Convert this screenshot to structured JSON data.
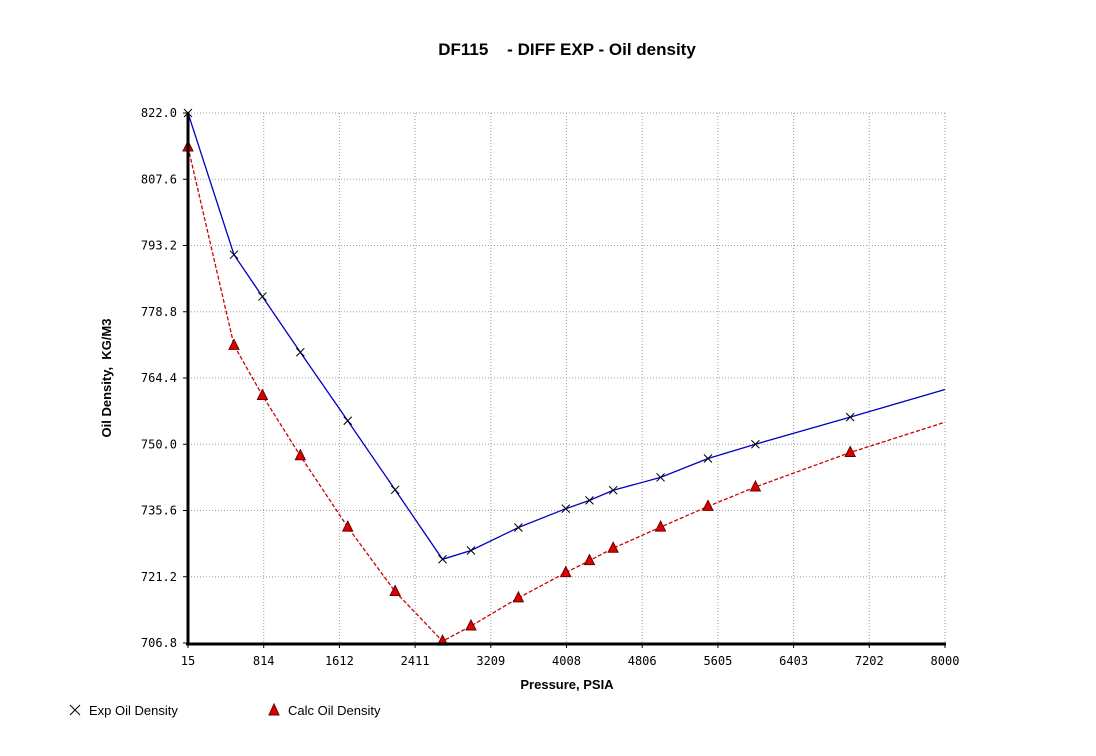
{
  "chart_data": {
    "type": "line",
    "title": "DF115    - DIFF EXP - Oil density",
    "xlabel": "Pressure, PSIA",
    "ylabel": "Oil Density,  KG/M3",
    "xlim": [
      15,
      8000
    ],
    "ylim": [
      706.8,
      822.0
    ],
    "xticks": [
      "15",
      "814",
      "1612",
      "2411",
      "3209",
      "4008",
      "4806",
      "5605",
      "6403",
      "7202",
      "8000"
    ],
    "yticks": [
      "822.0",
      "807.6",
      "793.2",
      "778.8",
      "764.4",
      "750.0",
      "735.6",
      "721.2",
      "706.8"
    ],
    "grid": true,
    "legend_position": "bottom-left",
    "series": [
      {
        "name": "Exp Oil Density",
        "color": "#0000c0",
        "marker": "x",
        "line": "solid",
        "x": [
          15,
          500,
          800,
          1200,
          1700,
          2200,
          2700,
          3000,
          3500,
          4000,
          4250,
          4500,
          5000,
          5500,
          6000,
          7000,
          8000
        ],
        "y": [
          822.0,
          791.2,
          782.1,
          770.0,
          755.1,
          740.1,
          725.0,
          726.9,
          731.9,
          736.0,
          737.8,
          740.0,
          742.8,
          746.9,
          750.0,
          755.9,
          761.9
        ]
      },
      {
        "name": "Calc Oil Density",
        "color": "#cc0000",
        "marker": "triangle",
        "line": "dashed",
        "x": [
          15,
          500,
          800,
          1200,
          1700,
          2200,
          2700,
          3000,
          3500,
          4000,
          4250,
          4500,
          5000,
          5500,
          6000,
          7000,
          8000
        ],
        "y": [
          814.6,
          771.5,
          760.6,
          747.5,
          732.0,
          718.0,
          707.2,
          710.5,
          716.6,
          722.1,
          724.7,
          727.4,
          732.0,
          736.5,
          740.7,
          748.2,
          754.8
        ]
      }
    ]
  }
}
